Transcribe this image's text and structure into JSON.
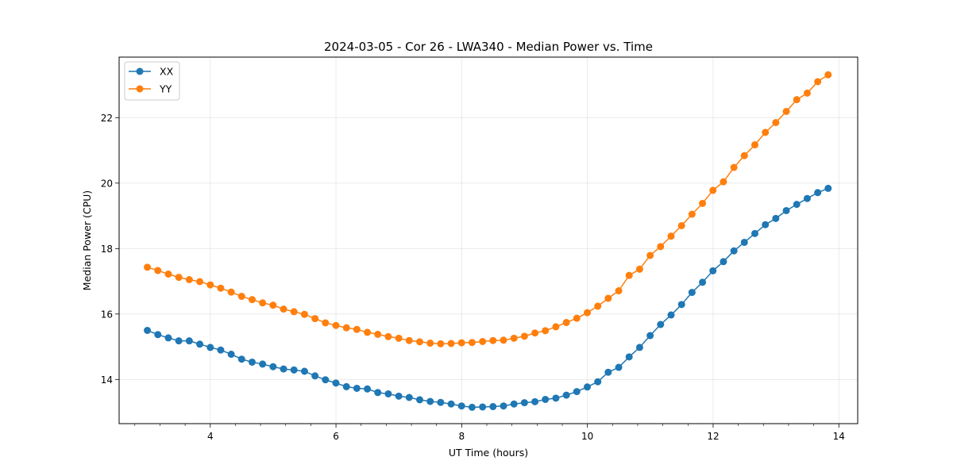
{
  "chart_data": {
    "type": "line",
    "title": "2024-03-05 - Cor 26 - LWA340 - Median Power vs. Time",
    "xlabel": "UT Time (hours)",
    "ylabel": "Median Power (CPU)",
    "xlim": [
      2.55,
      14.3
    ],
    "ylim": [
      12.65,
      23.85
    ],
    "xticks": [
      4,
      6,
      8,
      10,
      12,
      14
    ],
    "xtick_labels": [
      "4",
      "6",
      "8",
      "10",
      "12",
      "14"
    ],
    "yticks": [
      14,
      16,
      18,
      20,
      22
    ],
    "ytick_labels": [
      "14",
      "16",
      "18",
      "20",
      "22"
    ],
    "x_minor_step": 0.4,
    "grid": true,
    "legend_position": "top-left",
    "x": [
      2.999,
      3.166,
      3.333,
      3.499,
      3.666,
      3.833,
      4.0,
      4.166,
      4.333,
      4.499,
      4.666,
      4.832,
      4.999,
      5.166,
      5.332,
      5.499,
      5.666,
      5.832,
      5.999,
      6.166,
      6.332,
      6.499,
      6.665,
      6.832,
      6.999,
      7.165,
      7.332,
      7.499,
      7.665,
      7.832,
      7.998,
      8.165,
      8.332,
      8.498,
      8.665,
      8.832,
      8.998,
      9.165,
      9.331,
      9.498,
      9.665,
      9.831,
      9.998,
      10.165,
      10.331,
      10.498,
      10.664,
      10.831,
      10.998,
      11.164,
      11.331,
      11.498,
      11.664,
      11.831,
      11.997,
      12.164,
      12.331,
      12.497,
      12.664,
      12.831,
      12.997,
      13.164,
      13.33,
      13.497,
      13.664,
      13.83
    ],
    "series": [
      {
        "name": "XX",
        "color": "#1f77b4",
        "values": [
          15.5,
          15.37,
          15.27,
          15.18,
          15.18,
          15.08,
          14.98,
          14.9,
          14.77,
          14.62,
          14.53,
          14.47,
          14.39,
          14.32,
          14.29,
          14.25,
          14.11,
          13.99,
          13.89,
          13.78,
          13.73,
          13.71,
          13.6,
          13.56,
          13.49,
          13.45,
          13.38,
          13.33,
          13.3,
          13.25,
          13.19,
          13.15,
          13.16,
          13.17,
          13.19,
          13.25,
          13.29,
          13.32,
          13.39,
          13.43,
          13.52,
          13.63,
          13.77,
          13.93,
          14.22,
          14.37,
          14.69,
          14.98,
          15.34,
          15.68,
          15.97,
          16.29,
          16.66,
          16.97,
          17.32,
          17.6,
          17.93,
          18.19,
          18.46,
          18.73,
          18.92,
          19.16,
          19.35,
          19.53,
          19.71,
          19.84
        ]
      },
      {
        "name": "YY",
        "color": "#ff7f0e",
        "values": [
          17.43,
          17.33,
          17.22,
          17.12,
          17.05,
          16.99,
          16.89,
          16.79,
          16.67,
          16.54,
          16.44,
          16.34,
          16.27,
          16.15,
          16.07,
          15.99,
          15.86,
          15.73,
          15.65,
          15.58,
          15.53,
          15.44,
          15.38,
          15.31,
          15.26,
          15.19,
          15.15,
          15.11,
          15.09,
          15.1,
          15.12,
          15.13,
          15.16,
          15.19,
          15.2,
          15.26,
          15.32,
          15.42,
          15.49,
          15.61,
          15.74,
          15.87,
          16.04,
          16.24,
          16.48,
          16.71,
          17.18,
          17.37,
          17.79,
          18.06,
          18.38,
          18.7,
          19.05,
          19.38,
          19.78,
          20.04,
          20.48,
          20.84,
          21.17,
          21.55,
          21.85,
          22.19,
          22.55,
          22.75,
          23.1,
          23.31
        ]
      }
    ]
  }
}
